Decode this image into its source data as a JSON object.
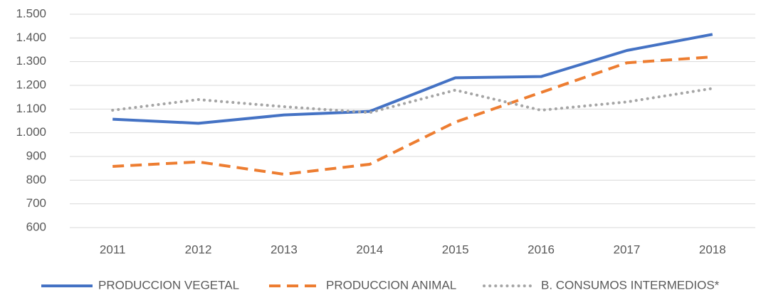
{
  "chart_data": {
    "type": "line",
    "categories": [
      "2011",
      "2012",
      "2013",
      "2014",
      "2015",
      "2016",
      "2017",
      "2018"
    ],
    "series": [
      {
        "name": "PRODUCCION VEGETAL",
        "color": "#4472c4",
        "line_style": "solid",
        "values": [
          1057,
          1040,
          1075,
          1090,
          1232,
          1237,
          1347,
          1415
        ]
      },
      {
        "name": "PRODUCCION ANIMAL",
        "color": "#ed7d31",
        "line_style": "dashed",
        "values": [
          858,
          877,
          825,
          867,
          1045,
          1170,
          1295,
          1320
        ]
      },
      {
        "name": "B. CONSUMOS INTERMEDIOS*",
        "color": "#a5a5a5",
        "line_style": "dotted",
        "values": [
          1095,
          1140,
          1110,
          1085,
          1180,
          1095,
          1130,
          1187
        ]
      }
    ],
    "ylim": [
      600,
      1500
    ],
    "yticks": [
      600,
      700,
      800,
      900,
      {
        "value": 1000,
        "label": "1.000"
      },
      {
        "value": 1100,
        "label": "1.100"
      },
      {
        "value": 1200,
        "label": "1.200"
      },
      {
        "value": 1300,
        "label": "1.300"
      },
      {
        "value": 1400,
        "label": "1.400"
      },
      {
        "value": 1500,
        "label": "1.500"
      }
    ],
    "grid": true,
    "legend": "bottom"
  }
}
